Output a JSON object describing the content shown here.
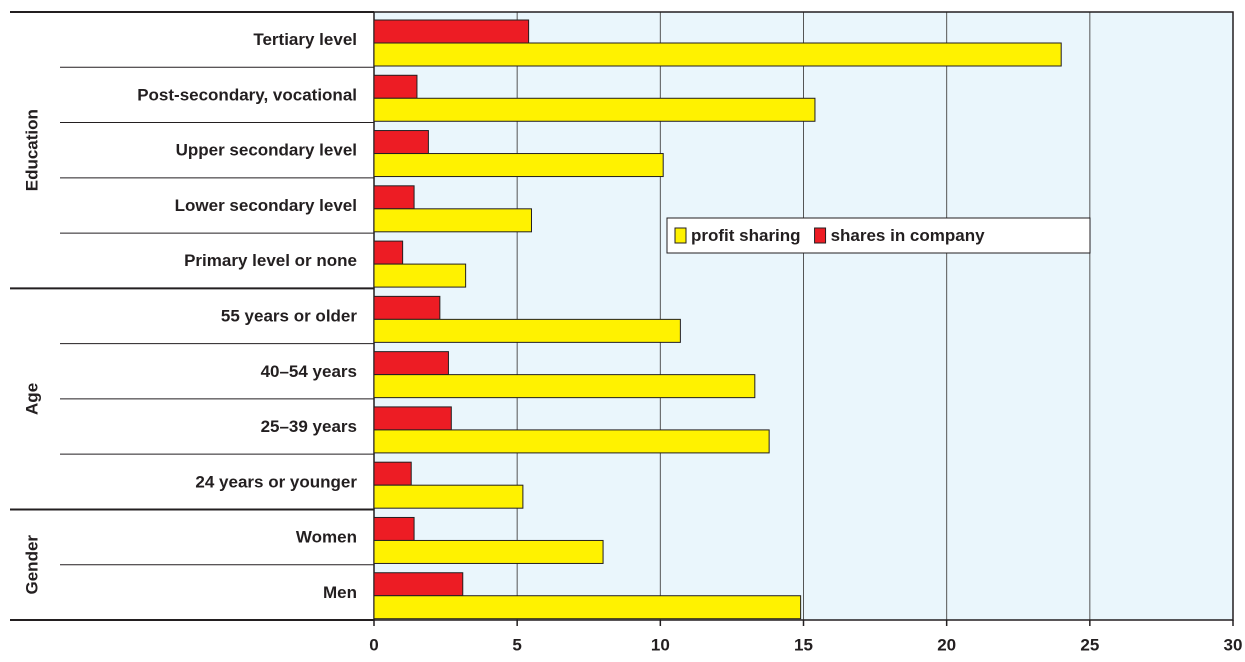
{
  "chart_data": {
    "type": "bar",
    "orientation": "horizontal",
    "categories": [
      "Tertiary level",
      "Post-secondary, vocational",
      "Upper secondary level",
      "Lower secondary level",
      "Primary level or none",
      "55 years or older",
      "40–54 years",
      "25–39 years",
      "24 years or younger",
      "Women",
      "Men"
    ],
    "category_groups": [
      "Education",
      "Education",
      "Education",
      "Education",
      "Education",
      "Age",
      "Age",
      "Age",
      "Age",
      "Gender",
      "Gender"
    ],
    "series": [
      {
        "name": "shares in company",
        "color": "#ed1c24",
        "values": [
          5.4,
          1.5,
          1.9,
          1.4,
          1.0,
          2.3,
          2.6,
          2.7,
          1.3,
          1.4,
          3.1
        ]
      },
      {
        "name": "profit sharing",
        "color": "#fff200",
        "values": [
          24.0,
          15.4,
          10.1,
          5.5,
          3.2,
          10.7,
          13.3,
          13.8,
          5.2,
          8.0,
          14.9
        ]
      }
    ],
    "legend_order": [
      "profit sharing",
      "shares in company"
    ],
    "xlim": [
      0,
      30
    ],
    "xticks": [
      0,
      5,
      10,
      15,
      20,
      25,
      30
    ],
    "grid": true
  }
}
